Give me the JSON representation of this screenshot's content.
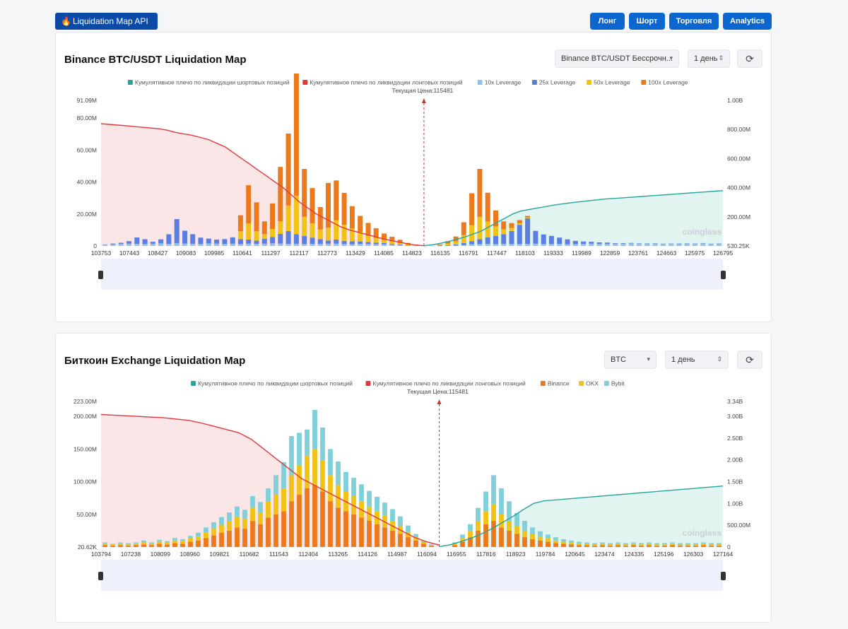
{
  "header": {
    "brand": "Liquidation Map API",
    "nav": [
      {
        "label": "Лонг",
        "name": "long-button"
      },
      {
        "label": "Шорт",
        "name": "short-button"
      },
      {
        "label": "Торговля",
        "name": "trading-button"
      },
      {
        "label": "Analytics",
        "name": "analytics-button"
      }
    ]
  },
  "colors": {
    "short_cum": "#26a69a",
    "long_cum": "#e0383e",
    "lev10": "#8fc3ea",
    "lev25": "#5b7fe0",
    "lev50": "#f2c314",
    "lev100": "#ec7a1c",
    "binance": "#ec7a1c",
    "okx": "#f2c314",
    "bybit": "#7fd0d8",
    "accent": "#0b66d0"
  },
  "panel1": {
    "title": "Binance BTC/USDT Liquidation Map",
    "pair_select": "Binance BTC/USDT Бессрочн...",
    "period_select": "1 день",
    "watermark": "coinglass"
  },
  "panel2": {
    "title": "Биткоин Exchange Liquidation Map",
    "coin_select": "BTC",
    "period_select": "1 день",
    "watermark": "coinglass"
  },
  "chart_data": [
    {
      "type": "bar",
      "title": "Binance BTC/USDT Liquidation Map",
      "current_price_label": "Текущая Цена:115481",
      "current_price": 115481,
      "legend": [
        {
          "label": "Кумулятивное плечо по ликвидации шортовых позиций",
          "color": "#26a69a"
        },
        {
          "label": "Кумулятивное плечо по ликвидации лонговых позиций",
          "color": "#e0383e"
        },
        {
          "label": "10x Leverage",
          "color": "#8fc3ea"
        },
        {
          "label": "25x Leverage",
          "color": "#5b7fe0"
        },
        {
          "label": "50x Leverage",
          "color": "#f2c314"
        },
        {
          "label": "100x Leverage",
          "color": "#ec7a1c"
        }
      ],
      "x_tick_labels": [
        "103753",
        "107443",
        "108427",
        "109083",
        "109985",
        "110641",
        "111297",
        "112117",
        "112773",
        "113429",
        "114085",
        "114823",
        "116135",
        "116791",
        "117447",
        "118103",
        "119333",
        "119989",
        "122859",
        "123761",
        "124663",
        "125975",
        "126795"
      ],
      "left_axis": {
        "ticks": [
          "0",
          "20.00M",
          "40.00M",
          "60.00M",
          "80.00M",
          "91.09M"
        ],
        "values": [
          0,
          20,
          40,
          60,
          80,
          91.09
        ],
        "max": 91.09,
        "unit": "M"
      },
      "right_axis": {
        "ticks": [
          "530.25K",
          "200.00M",
          "400.00M",
          "600.00M",
          "800.00M",
          "1.00B"
        ],
        "values": [
          0.53,
          200,
          400,
          600,
          800,
          1000
        ],
        "max": 1000,
        "unit": "M"
      },
      "series": [
        {
          "name": "10x Leverage",
          "values": [
            1,
            1,
            1.2,
            1.5,
            1.3,
            1.2,
            1.4,
            1.6,
            1.3,
            1.8,
            1.5,
            1.4,
            1.2,
            1.6,
            1.5,
            1.3,
            1.4,
            1.2,
            1.5,
            1.3,
            1.4,
            1.6,
            1.5,
            1.3,
            1.4,
            1.2,
            1.2,
            1.3,
            1.4,
            1.5,
            1.2,
            1.1,
            1.3,
            1.2,
            1.1,
            1.0,
            0.8,
            0.6,
            0.3,
            0.2,
            0.1,
            0.1,
            0.1,
            0.2,
            0.3,
            0.6,
            1.0,
            1.2,
            1.3,
            1.2,
            1.4,
            1.3,
            1.2,
            1.3,
            1.4,
            1.2,
            1.3,
            1.2,
            1.1,
            1.2,
            1.3,
            1.4,
            1.2,
            1.3,
            1.2,
            1.4,
            1.6,
            1.5,
            1.4,
            1.3,
            1.2,
            1.3,
            1.2,
            1.4,
            1.3,
            1.6,
            1.2,
            1.3
          ]
        },
        {
          "name": "25x Leverage",
          "values": [
            0,
            0.5,
            0.8,
            1.5,
            4,
            3,
            1.2,
            2.5,
            6,
            15,
            8,
            6,
            4,
            3,
            2.5,
            3,
            4,
            3,
            2.5,
            2,
            3,
            4,
            6,
            8,
            6,
            5,
            4,
            3,
            2,
            2.5,
            2,
            1.8,
            1.5,
            1.2,
            1,
            0.8,
            0.5,
            0.3,
            0.1,
            0,
            0,
            0,
            0.1,
            0.3,
            0.6,
            1.2,
            2,
            3,
            4,
            5,
            6,
            8,
            12,
            16,
            8,
            6,
            5,
            4,
            3,
            2,
            1.5,
            1.2,
            1,
            0.8,
            0.5,
            0.4,
            0.3,
            0.2,
            0.2,
            0.3,
            0.2,
            0.2,
            0.3,
            0.2,
            0.2,
            0.2,
            0.2,
            0.2
          ]
        },
        {
          "name": "50x Leverage",
          "values": [
            0,
            0,
            0,
            0,
            0,
            0,
            0,
            0,
            0,
            0,
            0,
            0,
            0,
            0,
            0,
            0,
            0,
            5,
            10,
            6,
            3,
            5,
            8,
            16,
            24,
            12,
            9,
            6,
            8,
            12,
            10,
            8,
            6,
            4,
            3,
            2,
            1.5,
            1,
            0.5,
            0.2,
            0,
            0,
            0.3,
            1,
            2,
            5,
            10,
            14,
            10,
            6,
            3,
            2,
            1,
            0.5,
            0,
            0,
            0,
            0,
            0,
            0,
            0,
            0,
            0,
            0,
            0,
            0,
            0,
            0,
            0,
            0,
            0,
            0,
            0,
            0,
            0,
            0,
            0,
            0
          ]
        },
        {
          "name": "100x Leverage",
          "values": [
            0,
            0,
            0,
            0,
            0,
            0,
            0,
            0,
            0,
            0,
            0,
            0,
            0,
            0,
            0,
            0,
            0,
            10,
            24,
            18,
            8,
            16,
            34,
            45,
            82,
            30,
            22,
            14,
            28,
            25,
            20,
            14,
            10,
            8,
            6,
            4,
            3,
            2,
            1,
            0.5,
            0,
            0,
            0.5,
            1.5,
            3,
            8,
            20,
            30,
            18,
            10,
            5,
            3,
            2,
            1,
            0,
            0,
            0,
            0,
            0,
            0,
            0,
            0,
            0,
            0,
            0,
            0,
            0,
            0,
            0,
            0,
            0,
            0,
            0,
            0,
            0,
            0,
            0,
            0
          ]
        }
      ],
      "long_cumulative_left": [
        840,
        835,
        830,
        826,
        820,
        815,
        810,
        805,
        795,
        780,
        770,
        760,
        745,
        730,
        705,
        680,
        640,
        600,
        560,
        520,
        480,
        440,
        400,
        350,
        300,
        260,
        220,
        190,
        160,
        130,
        110,
        95,
        80,
        65,
        50,
        38,
        26,
        15,
        6,
        2
      ],
      "short_cumulative_right": [
        2,
        8,
        18,
        30,
        45,
        60,
        80,
        100,
        130,
        160,
        190,
        220,
        240,
        250,
        260,
        270,
        280,
        288,
        295,
        302,
        308,
        314,
        320,
        325,
        328,
        332,
        336,
        340,
        344,
        348,
        352,
        356,
        360,
        364,
        368,
        372,
        376,
        380
      ]
    },
    {
      "type": "bar",
      "title": "Биткоин Exchange Liquidation Map",
      "current_price_label": "Текущая Цена:115481",
      "current_price": 115481,
      "legend": [
        {
          "label": "Кумулятивное плечо по ликвидации шортовых позиций",
          "color": "#26a69a"
        },
        {
          "label": "Кумулятивное плечо по ликвидации лонговых позиций",
          "color": "#e0383e"
        },
        {
          "label": "Binance",
          "color": "#ec7a1c"
        },
        {
          "label": "OKX",
          "color": "#f2c314"
        },
        {
          "label": "Bybit",
          "color": "#7fd0d8"
        }
      ],
      "x_tick_labels": [
        "103794",
        "107238",
        "108099",
        "108960",
        "109821",
        "110682",
        "111543",
        "112404",
        "113265",
        "114126",
        "114987",
        "116094",
        "116955",
        "117816",
        "118923",
        "119784",
        "120645",
        "123474",
        "124335",
        "125196",
        "126303",
        "127164"
      ],
      "left_axis": {
        "ticks": [
          "20.62K",
          "50.00M",
          "100.00M",
          "150.00M",
          "200.00M",
          "223.00M"
        ],
        "values": [
          0.02,
          50,
          100,
          150,
          200,
          223
        ],
        "max": 223,
        "unit": "M"
      },
      "right_axis": {
        "ticks": [
          "0",
          "500.00M",
          "1.00B",
          "1.50B",
          "2.00B",
          "2.50B",
          "3.00B",
          "3.34B"
        ],
        "values": [
          0,
          500,
          1000,
          1500,
          2000,
          2500,
          3000,
          3340
        ],
        "max": 3340,
        "unit": "M"
      },
      "series": [
        {
          "name": "Binance",
          "values": [
            3,
            2,
            3,
            2,
            3,
            4,
            3,
            5,
            4,
            6,
            5,
            8,
            10,
            14,
            18,
            22,
            25,
            30,
            28,
            40,
            35,
            45,
            50,
            55,
            70,
            80,
            90,
            95,
            85,
            70,
            60,
            55,
            50,
            45,
            40,
            35,
            30,
            25,
            20,
            15,
            10,
            5,
            2,
            0,
            0,
            3,
            8,
            15,
            25,
            35,
            40,
            30,
            25,
            20,
            15,
            12,
            10,
            8,
            6,
            5,
            4,
            3,
            3,
            2,
            3,
            2,
            3,
            2,
            3,
            2,
            3,
            2,
            2,
            3,
            2,
            2,
            2,
            3,
            2,
            2
          ]
        },
        {
          "name": "OKX",
          "values": [
            2,
            2,
            2,
            2,
            2,
            3,
            2,
            3,
            3,
            4,
            4,
            5,
            6,
            8,
            10,
            12,
            14,
            16,
            15,
            20,
            18,
            25,
            30,
            35,
            40,
            45,
            50,
            55,
            48,
            40,
            35,
            30,
            28,
            25,
            22,
            20,
            18,
            15,
            12,
            8,
            5,
            3,
            1,
            0,
            0,
            2,
            5,
            10,
            15,
            20,
            25,
            20,
            15,
            12,
            10,
            8,
            6,
            5,
            4,
            3,
            3,
            2,
            2,
            2,
            2,
            2,
            2,
            2,
            2,
            2,
            2,
            2,
            2,
            2,
            2,
            2,
            2,
            2,
            2,
            2
          ]
        },
        {
          "name": "Bybit",
          "values": [
            2,
            1,
            2,
            2,
            2,
            3,
            2,
            3,
            2,
            4,
            3,
            4,
            6,
            8,
            10,
            12,
            14,
            16,
            14,
            18,
            16,
            20,
            30,
            40,
            60,
            50,
            40,
            60,
            50,
            40,
            36,
            30,
            28,
            26,
            24,
            22,
            20,
            18,
            15,
            10,
            5,
            2,
            1,
            0,
            0,
            2,
            6,
            10,
            20,
            30,
            45,
            40,
            30,
            20,
            15,
            10,
            8,
            6,
            5,
            4,
            3,
            3,
            2,
            2,
            2,
            2,
            2,
            2,
            2,
            2,
            2,
            2,
            2,
            2,
            2,
            2,
            2,
            2,
            2,
            2
          ]
        }
      ],
      "long_cumulative_left": [
        203,
        202,
        201,
        200,
        199,
        198,
        196,
        194,
        190,
        185,
        180,
        175,
        165,
        150,
        135,
        120,
        105,
        95,
        85,
        75,
        65,
        55,
        45,
        35,
        25,
        15,
        8,
        3
      ],
      "short_cumulative_right": [
        10,
        50,
        120,
        200,
        300,
        420,
        560,
        700,
        860,
        1000,
        1060,
        1080,
        1100,
        1120,
        1140,
        1160,
        1180,
        1200,
        1220,
        1240,
        1260,
        1280,
        1300,
        1320,
        1340,
        1360,
        1380,
        1400
      ]
    }
  ]
}
